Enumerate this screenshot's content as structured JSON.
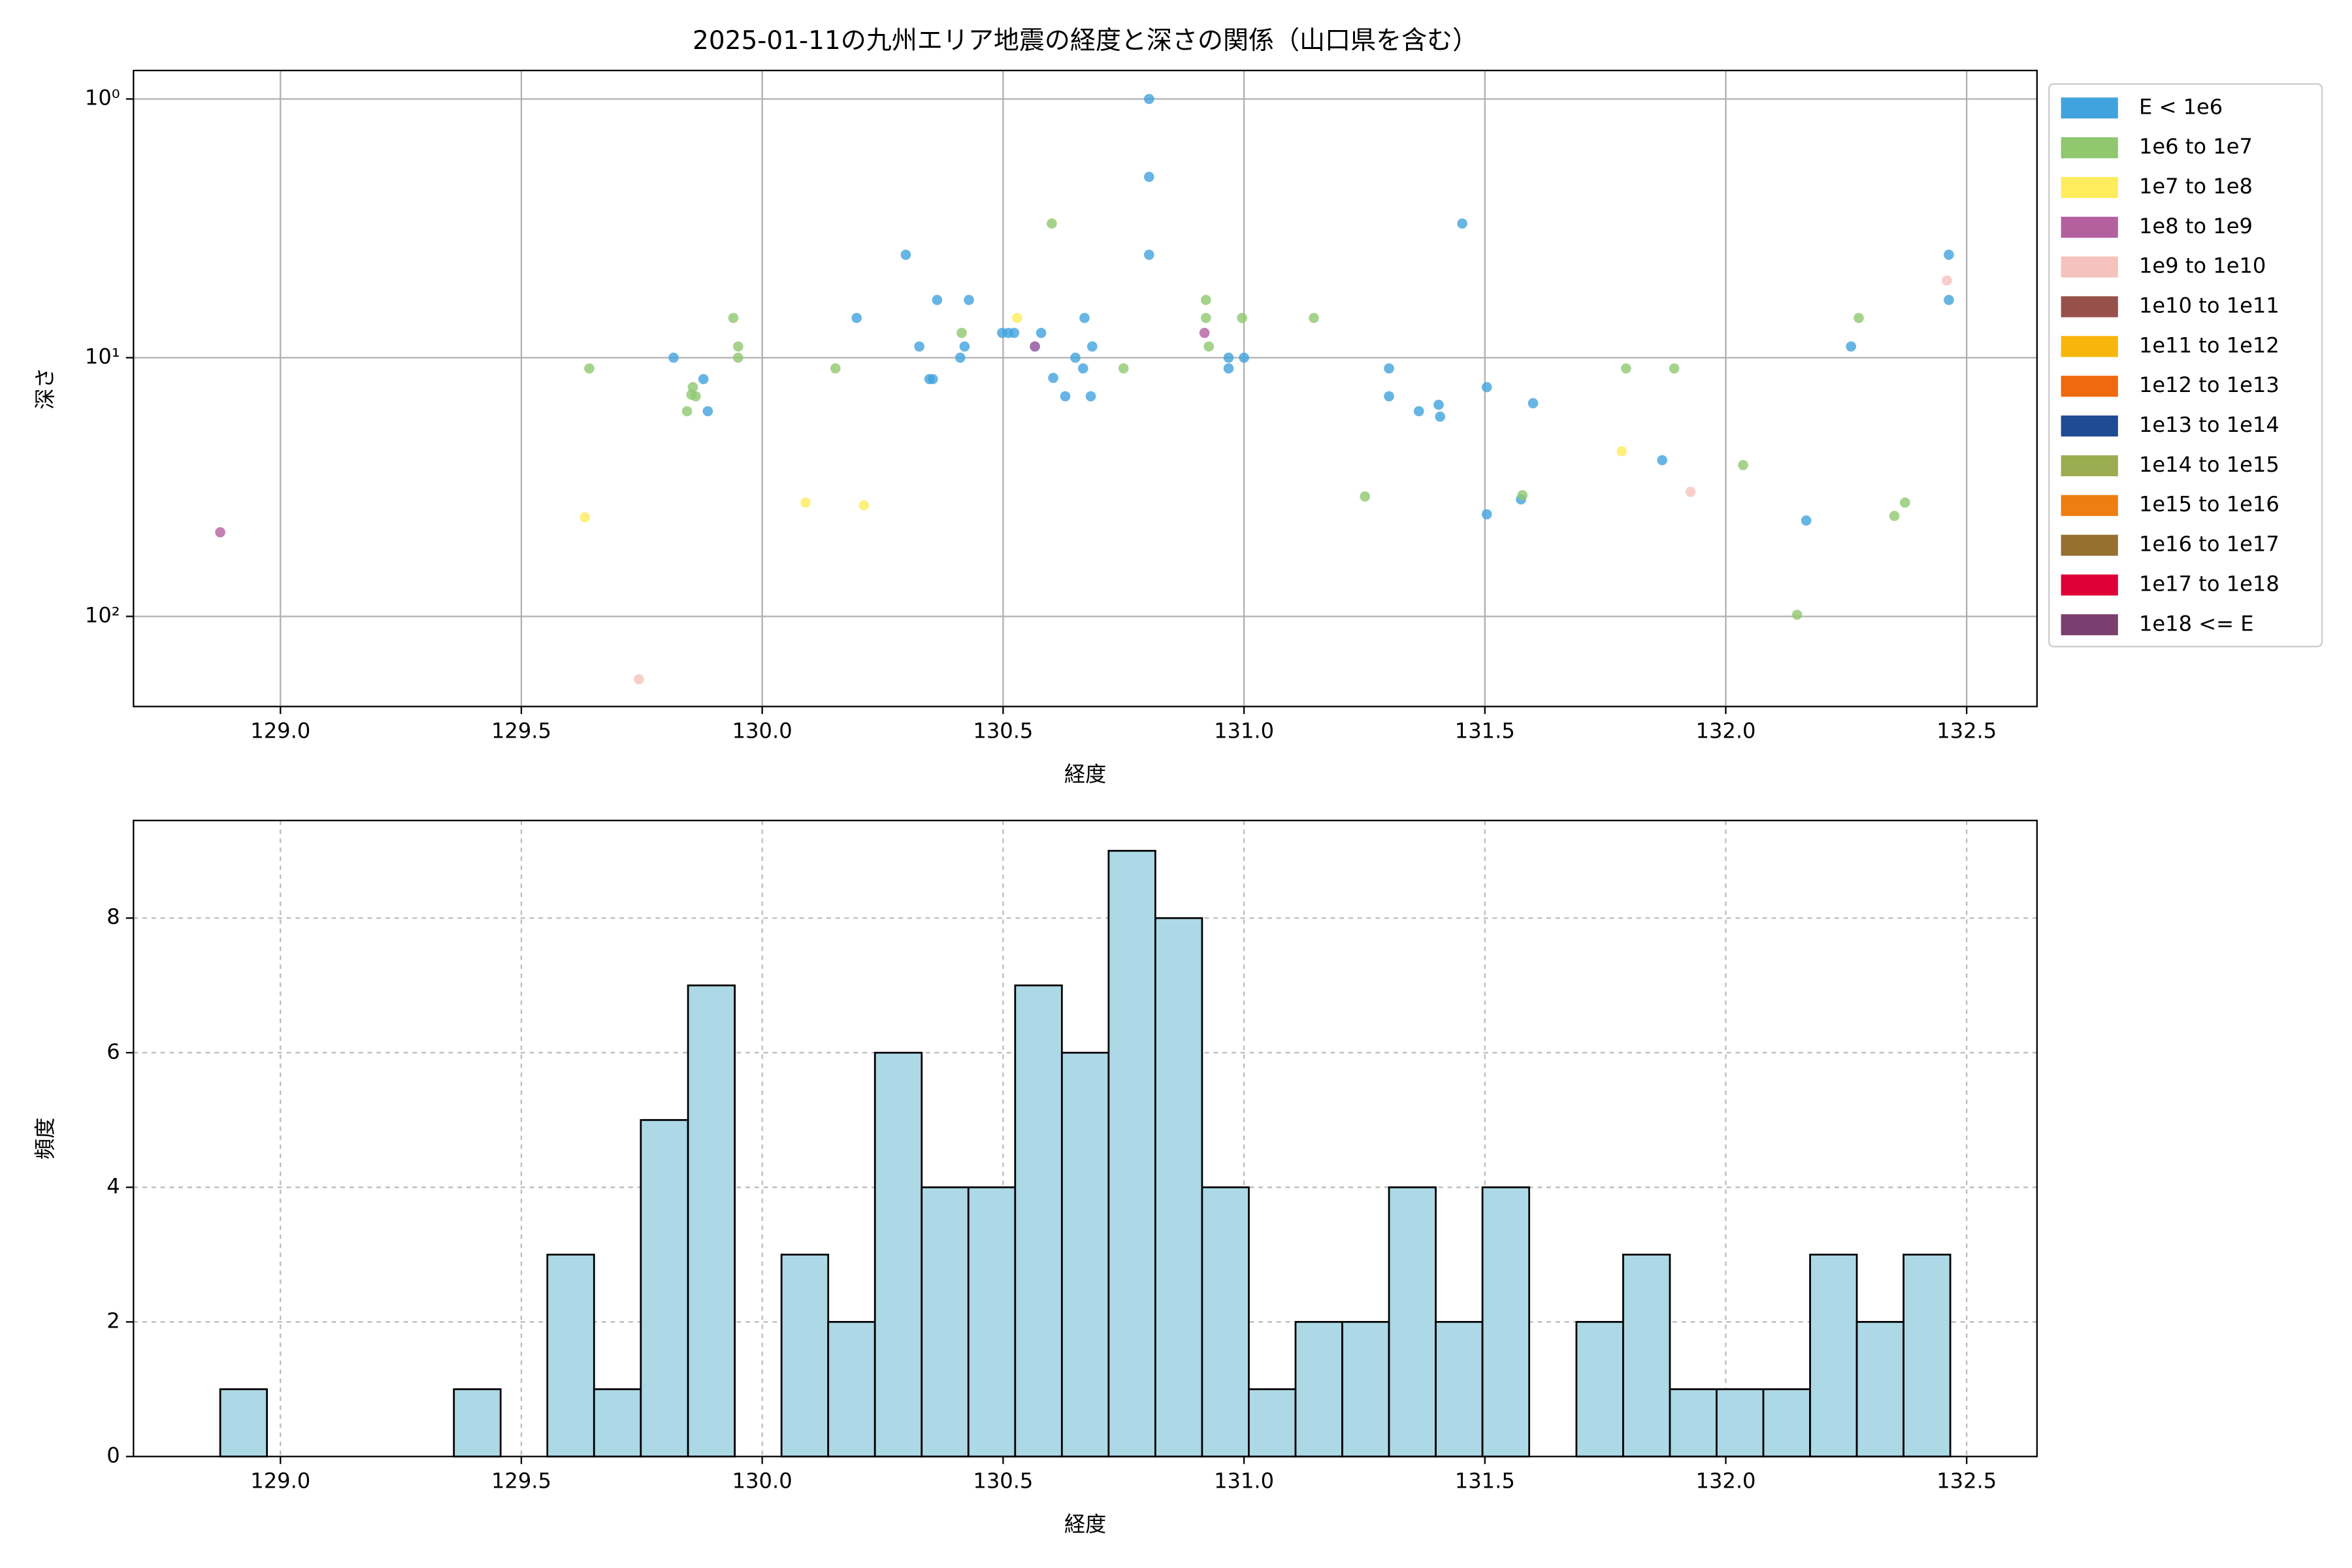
{
  "chart_data": [
    {
      "type": "scatter",
      "title": "2025-01-11の九州エリア地震の経度と深さの関係（山口県を含む）",
      "xlabel": "経度",
      "ylabel": "深さ",
      "xlim": [
        128.695,
        132.646
      ],
      "xticks": [
        {
          "value": 129,
          "label": "129.0"
        },
        {
          "value": 129.5,
          "label": "129.5"
        },
        {
          "value": 130,
          "label": "130.0"
        },
        {
          "value": 130.5,
          "label": "130.5"
        },
        {
          "value": 131,
          "label": "131.0"
        },
        {
          "value": 131.5,
          "label": "131.5"
        },
        {
          "value": 132,
          "label": "132.0"
        },
        {
          "value": 132.5,
          "label": "132.5"
        }
      ],
      "ylim": [
        223,
        0.776
      ],
      "yscale": "log",
      "yticks": [
        {
          "value": 1,
          "label": "10⁰"
        },
        {
          "value": 10,
          "label": "10¹"
        },
        {
          "value": 100,
          "label": "10²"
        }
      ],
      "grid": true,
      "grid_style": "solid",
      "legend": "outside-right",
      "series": [
        {
          "name": "E < 1e6",
          "color": "#41a3dd",
          "x": [
            129.816,
            129.887,
            129.878,
            130.298,
            130.326,
            130.347,
            130.354,
            130.363,
            130.42,
            130.411,
            130.429,
            130.196,
            130.498,
            130.511,
            130.523,
            130.579,
            130.566,
            130.604,
            130.629,
            130.65,
            130.666,
            130.669,
            130.682,
            130.685,
            130.803,
            130.803,
            130.803,
            130.968,
            130.968,
            131.0,
            131.301,
            131.301,
            131.363,
            131.404,
            131.407,
            131.453,
            131.504,
            131.504,
            131.6,
            131.575,
            131.868,
            132.167,
            132.26,
            132.463,
            132.463
          ],
          "values": [
            10.0,
            16.1,
            12.1,
            4.0,
            9.05,
            12.1,
            12.1,
            5.98,
            9.05,
            10.0,
            5.98,
            7.02,
            8.02,
            8.02,
            8.02,
            8.02,
            9.05,
            11.97,
            14.1,
            10.0,
            11.0,
            7.02,
            14.1,
            9.05,
            1.0,
            2.0,
            4.0,
            10.0,
            11.0,
            10.0,
            11.0,
            14.1,
            16.1,
            15.2,
            16.9,
            3.03,
            13.0,
            40.3,
            15.0,
            35.3,
            24.9,
            42.6,
            9.05,
            4.0,
            5.98
          ]
        },
        {
          "name": "1e6 to 1e7",
          "color": "#8fc86f",
          "x": [
            129.641,
            129.856,
            129.853,
            129.844,
            129.862,
            129.94,
            129.95,
            129.95,
            130.152,
            130.414,
            130.601,
            130.75,
            130.921,
            130.921,
            130.927,
            130.996,
            131.145,
            131.251,
            131.578,
            131.793,
            131.893,
            132.036,
            132.148,
            132.276,
            132.35,
            132.372
          ],
          "values": [
            11.0,
            13.0,
            13.9,
            16.1,
            14.1,
            7.02,
            9.05,
            10.0,
            11.0,
            8.02,
            3.03,
            11.0,
            5.98,
            7.02,
            9.05,
            7.02,
            7.02,
            34.4,
            34.0,
            11.0,
            11.0,
            26.0,
            98.6,
            7.02,
            40.9,
            36.3
          ]
        },
        {
          "name": "1e7 to 1e8",
          "color": "#ffec5c",
          "x": [
            129.632,
            130.09,
            130.211,
            130.529,
            131.784
          ],
          "values": [
            41.4,
            36.3,
            37.2,
            7.02,
            23.0
          ]
        },
        {
          "name": "1e8 to 1e9",
          "color": "#b4609f",
          "x": [
            128.875,
            130.566,
            130.918
          ],
          "values": [
            47.3,
            9.05,
            8.02
          ]
        },
        {
          "name": "1e9 to 1e10",
          "color": "#f6c2bd",
          "x": [
            129.744,
            131.927,
            132.459
          ],
          "values": [
            175,
            33.0,
            5.03
          ]
        },
        {
          "name": "1e10 to 1e11",
          "color": "#97514a",
          "x": [],
          "values": []
        },
        {
          "name": "1e11 to 1e12",
          "color": "#f8b60c",
          "x": [],
          "values": []
        },
        {
          "name": "1e12 to 1e13",
          "color": "#ef6a0e",
          "x": [],
          "values": []
        },
        {
          "name": "1e13 to 1e14",
          "color": "#1f4b94",
          "x": [],
          "values": []
        },
        {
          "name": "1e14 to 1e15",
          "color": "#9bad50",
          "x": [],
          "values": []
        },
        {
          "name": "1e15 to 1e16",
          "color": "#ef7e12",
          "x": [],
          "values": []
        },
        {
          "name": "1e16 to 1e17",
          "color": "#95702e",
          "x": [],
          "values": []
        },
        {
          "name": "1e17 to 1e18",
          "color": "#df0038",
          "x": [],
          "values": []
        },
        {
          "name": "1e18 <= E",
          "color": "#7a3f6e",
          "x": [],
          "values": []
        }
      ]
    },
    {
      "type": "histogram",
      "xlabel": "経度",
      "ylabel": "頻度",
      "xlim": [
        128.695,
        132.646
      ],
      "xticks": [
        {
          "value": 129,
          "label": "129.0"
        },
        {
          "value": 129.5,
          "label": "129.5"
        },
        {
          "value": 130,
          "label": "130.0"
        },
        {
          "value": 130.5,
          "label": "130.5"
        },
        {
          "value": 131,
          "label": "131.0"
        },
        {
          "value": 131.5,
          "label": "131.5"
        },
        {
          "value": 132,
          "label": "132.0"
        },
        {
          "value": 132.5,
          "label": "132.5"
        }
      ],
      "ylim": [
        0,
        9.45
      ],
      "yticks": [
        0,
        2,
        4,
        6,
        8
      ],
      "grid": true,
      "grid_style": "dashed",
      "color": "#add8e6",
      "edgecolor": "#000000",
      "bins": [
        128.875,
        128.972,
        129.069,
        129.166,
        129.263,
        129.36,
        129.457,
        129.554,
        129.651,
        129.748,
        129.846,
        129.943,
        130.04,
        130.137,
        130.234,
        130.331,
        130.428,
        130.525,
        130.622,
        130.719,
        130.816,
        130.913,
        131.01,
        131.107,
        131.204,
        131.301,
        131.398,
        131.495,
        131.592,
        131.69,
        131.787,
        131.884,
        131.981,
        132.078,
        132.175,
        132.272,
        132.369,
        132.466
      ],
      "values": [
        1,
        0,
        0,
        0,
        0,
        1,
        0,
        3,
        1,
        5,
        7,
        0,
        3,
        2,
        6,
        4,
        4,
        7,
        6,
        9,
        8,
        4,
        1,
        2,
        2,
        4,
        2,
        4,
        0,
        2,
        3,
        1,
        1,
        1,
        3,
        2,
        3
      ]
    }
  ]
}
